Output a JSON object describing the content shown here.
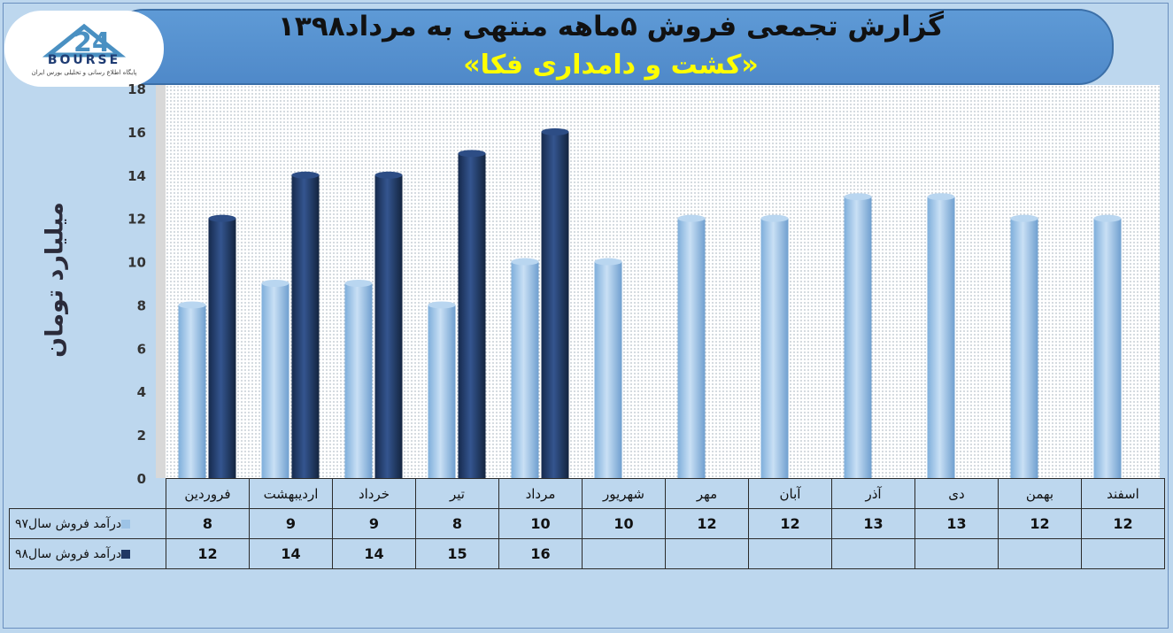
{
  "title": "گزارش تجمعی فروش ۵ماهه منتهی به مرداد۱۳۹۸",
  "subtitle": "«کشت و دامداری فکا»",
  "logo": {
    "text": "BOURSE",
    "tagline": "پایگاه اطلاع رسانی و تحلیلی بورس ایران"
  },
  "colors": {
    "series97": "#9dc3e6",
    "series98": "#203864",
    "plot_bg": "#ffffff",
    "banner": "#5b9bd5"
  },
  "chart_data": {
    "type": "bar",
    "title": "گزارش تجمعی فروش ۵ماهه منتهی به مرداد۱۳۹۸",
    "ylabel": "میلیارد تومان",
    "xlabel": "",
    "ylim": [
      0,
      18
    ],
    "yticks": [
      0,
      2,
      4,
      6,
      8,
      10,
      12,
      14,
      16,
      18
    ],
    "grid": false,
    "categories": [
      "فروردین",
      "اردیبهشت",
      "خرداد",
      "تیر",
      "مرداد",
      "شهریور",
      "مهر",
      "آبان",
      "آذر",
      "دی",
      "بهمن",
      "اسفند"
    ],
    "series": [
      {
        "name": "درآمد  فروش سال۹۷",
        "color": "#9dc3e6",
        "values": [
          8,
          9,
          9,
          8,
          10,
          10,
          12,
          12,
          13,
          13,
          12,
          12
        ]
      },
      {
        "name": "درآمد فروش  سال۹۸",
        "color": "#203864",
        "values": [
          12,
          14,
          14,
          15,
          16,
          null,
          null,
          null,
          null,
          null,
          null,
          null
        ]
      }
    ]
  }
}
